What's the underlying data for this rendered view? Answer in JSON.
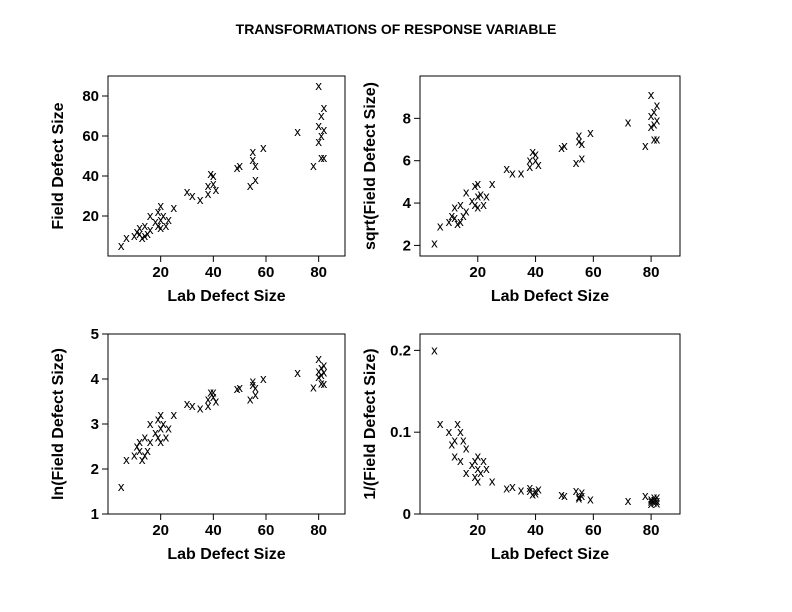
{
  "title": "TRANSFORMATIONS OF RESPONSE VARIABLE",
  "marker": "x",
  "chart_data": [
    {
      "type": "scatter",
      "xlabel": "Lab Defect Size",
      "ylabel": "Field Defect Size",
      "xlim": [
        0,
        90
      ],
      "ylim": [
        0,
        90
      ],
      "xticks": [
        20,
        40,
        60,
        80
      ],
      "yticks": [
        20,
        40,
        60,
        80
      ],
      "x": [
        5,
        7,
        10,
        11,
        12,
        12,
        13,
        14,
        14,
        15,
        16,
        16,
        18,
        19,
        19,
        20,
        20,
        20,
        21,
        22,
        23,
        25,
        30,
        32,
        35,
        38,
        38,
        39,
        40,
        40,
        41,
        49,
        50,
        54,
        55,
        55,
        56,
        56,
        59,
        72,
        78,
        80,
        80,
        80,
        81,
        81,
        81,
        82,
        82,
        82
      ],
      "y": [
        5,
        9,
        10,
        12,
        11,
        14,
        9,
        15,
        10,
        11,
        20,
        13,
        17,
        22,
        15,
        14,
        18,
        25,
        20,
        15,
        18,
        24,
        32,
        30,
        28,
        31,
        35,
        41,
        40,
        36,
        33,
        44,
        45,
        35,
        48,
        52,
        38,
        45,
        54,
        62,
        45,
        85,
        57,
        65,
        60,
        49,
        70,
        74,
        63,
        49
      ]
    },
    {
      "type": "scatter",
      "xlabel": "Lab Defect Size",
      "ylabel": "sqrt(Field Defect Size)",
      "xlim": [
        0,
        90
      ],
      "ylim": [
        1.5,
        10
      ],
      "xticks": [
        20,
        40,
        60,
        80
      ],
      "yticks": [
        2,
        4,
        6,
        8
      ],
      "x": [
        5,
        7,
        10,
        11,
        12,
        12,
        13,
        14,
        14,
        15,
        16,
        16,
        18,
        19,
        19,
        20,
        20,
        20,
        21,
        22,
        23,
        25,
        30,
        32,
        35,
        38,
        38,
        39,
        40,
        40,
        41,
        49,
        50,
        54,
        55,
        55,
        56,
        56,
        59,
        72,
        78,
        80,
        80,
        80,
        81,
        81,
        81,
        82,
        82,
        82
      ],
      "y": [
        2.1,
        2.9,
        3.1,
        3.4,
        3.3,
        3.8,
        3.0,
        3.9,
        3.1,
        3.4,
        4.5,
        3.6,
        4.1,
        4.8,
        3.9,
        3.8,
        4.3,
        4.9,
        4.4,
        3.9,
        4.3,
        4.9,
        5.6,
        5.4,
        5.4,
        5.7,
        6.0,
        6.4,
        6.3,
        6.0,
        5.8,
        6.6,
        6.7,
        5.9,
        6.9,
        7.2,
        6.1,
        6.8,
        7.3,
        7.8,
        6.7,
        9.1,
        7.6,
        8.1,
        7.7,
        7.0,
        8.3,
        8.6,
        7.9,
        7.0
      ]
    },
    {
      "type": "scatter",
      "xlabel": "Lab Defect Size",
      "ylabel": "ln(Field Defect Size)",
      "xlim": [
        0,
        90
      ],
      "ylim": [
        1,
        5
      ],
      "xticks": [
        20,
        40,
        60,
        80
      ],
      "yticks": [
        1,
        2,
        3,
        4,
        5
      ],
      "x": [
        5,
        7,
        10,
        11,
        12,
        12,
        13,
        14,
        14,
        15,
        16,
        16,
        18,
        19,
        19,
        20,
        20,
        20,
        21,
        22,
        23,
        25,
        30,
        32,
        35,
        38,
        38,
        39,
        40,
        40,
        41,
        49,
        50,
        54,
        55,
        55,
        56,
        56,
        59,
        72,
        78,
        80,
        80,
        80,
        81,
        81,
        81,
        82,
        82,
        82
      ],
      "y": [
        1.6,
        2.2,
        2.3,
        2.5,
        2.4,
        2.6,
        2.2,
        2.7,
        2.3,
        2.4,
        3.0,
        2.6,
        2.8,
        3.1,
        2.7,
        2.6,
        2.9,
        3.2,
        3.0,
        2.7,
        2.9,
        3.2,
        3.45,
        3.4,
        3.35,
        3.4,
        3.55,
        3.7,
        3.7,
        3.6,
        3.5,
        3.78,
        3.8,
        3.55,
        3.87,
        3.95,
        3.64,
        3.8,
        4.0,
        4.13,
        3.81,
        4.44,
        4.04,
        4.17,
        4.09,
        3.9,
        4.25,
        4.3,
        4.14,
        3.89
      ]
    },
    {
      "type": "scatter",
      "xlabel": "Lab Defect Size",
      "ylabel": "1/(Field Defect Size)",
      "xlim": [
        0,
        90
      ],
      "ylim": [
        0,
        0.22
      ],
      "xticks": [
        20,
        40,
        60,
        80
      ],
      "yticks": [
        0,
        0.1,
        0.2
      ],
      "x": [
        5,
        7,
        10,
        11,
        12,
        12,
        13,
        14,
        14,
        15,
        16,
        16,
        18,
        19,
        19,
        20,
        20,
        20,
        21,
        22,
        23,
        25,
        30,
        32,
        35,
        38,
        38,
        39,
        40,
        40,
        41,
        49,
        50,
        54,
        55,
        55,
        56,
        56,
        59,
        72,
        78,
        80,
        80,
        80,
        81,
        81,
        81,
        82,
        82,
        82
      ],
      "y": [
        0.2,
        0.11,
        0.1,
        0.085,
        0.09,
        0.07,
        0.11,
        0.065,
        0.1,
        0.09,
        0.05,
        0.08,
        0.06,
        0.045,
        0.065,
        0.07,
        0.055,
        0.04,
        0.05,
        0.065,
        0.055,
        0.04,
        0.031,
        0.033,
        0.029,
        0.032,
        0.028,
        0.024,
        0.025,
        0.028,
        0.03,
        0.023,
        0.022,
        0.028,
        0.021,
        0.019,
        0.026,
        0.022,
        0.018,
        0.016,
        0.022,
        0.012,
        0.018,
        0.015,
        0.017,
        0.02,
        0.014,
        0.013,
        0.016,
        0.02
      ]
    }
  ]
}
